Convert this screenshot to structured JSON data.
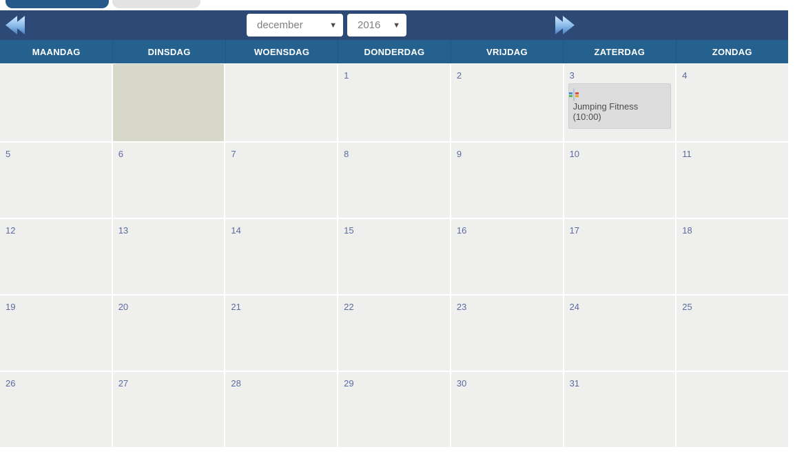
{
  "tabs": {
    "active_color": "#26598a",
    "inactive_color": "#e3e3e3"
  },
  "toolbar": {
    "background_color": "#2d4a77",
    "prev_icon": "double-chevron-left",
    "next_icon": "double-chevron-right",
    "month_select": {
      "value": "december"
    },
    "year_select": {
      "value": "2016"
    },
    "caret_glyph": "▼"
  },
  "weekday_header": {
    "background_color": "#25618e",
    "labels": [
      "MAANDAG",
      "DINSDAG",
      "WOENSDAG",
      "DONDERDAG",
      "VRIJDAG",
      "ZATERDAG",
      "ZONDAG"
    ]
  },
  "calendar": {
    "cell_color": "#efefee",
    "today_color": "#d7d8ca",
    "day_number_color": "#5a6b9e",
    "event_background": "#dcdcdc",
    "rows": [
      {
        "cells": [
          {},
          {
            "highlight": true
          },
          {},
          {
            "day": "1"
          },
          {
            "day": "2"
          },
          {
            "day": "3",
            "event": {
              "title": "Jumping Fitness (10:00)",
              "icon": "event-calendar-icon"
            }
          },
          {
            "day": "4"
          }
        ]
      },
      {
        "cells": [
          {
            "day": "5"
          },
          {
            "day": "6"
          },
          {
            "day": "7"
          },
          {
            "day": "8"
          },
          {
            "day": "9"
          },
          {
            "day": "10"
          },
          {
            "day": "11"
          }
        ]
      },
      {
        "cells": [
          {
            "day": "12"
          },
          {
            "day": "13"
          },
          {
            "day": "14"
          },
          {
            "day": "15"
          },
          {
            "day": "16"
          },
          {
            "day": "17"
          },
          {
            "day": "18"
          }
        ]
      },
      {
        "cells": [
          {
            "day": "19"
          },
          {
            "day": "20"
          },
          {
            "day": "21"
          },
          {
            "day": "22"
          },
          {
            "day": "23"
          },
          {
            "day": "24"
          },
          {
            "day": "25"
          }
        ]
      },
      {
        "cells": [
          {
            "day": "26"
          },
          {
            "day": "27"
          },
          {
            "day": "28"
          },
          {
            "day": "29"
          },
          {
            "day": "30"
          },
          {
            "day": "31"
          },
          {}
        ]
      }
    ]
  }
}
